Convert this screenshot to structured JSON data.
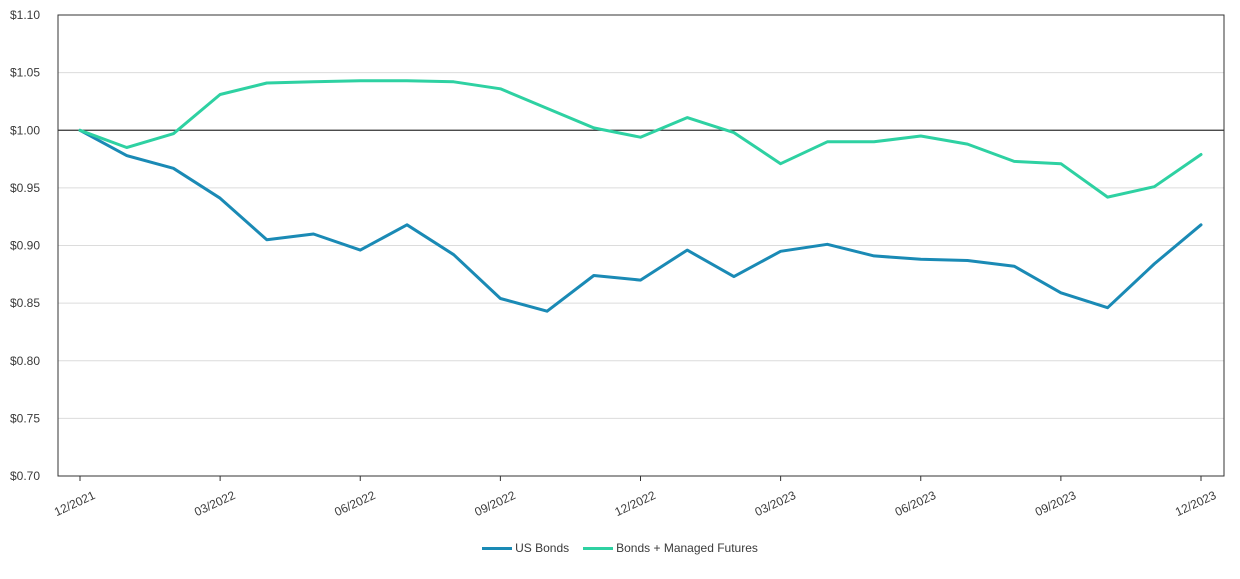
{
  "chart_data": {
    "type": "line",
    "title": "",
    "xlabel": "",
    "ylabel": "",
    "ylim": [
      0.7,
      1.1
    ],
    "y_ticks": [
      "$0.70",
      "$0.75",
      "$0.80",
      "$0.85",
      "$0.90",
      "$0.95",
      "$1.00",
      "$1.05",
      "$1.10"
    ],
    "y_tick_values": [
      0.7,
      0.75,
      0.8,
      0.85,
      0.9,
      0.95,
      1.0,
      1.05,
      1.1
    ],
    "x": [
      "12/2021",
      "01/2022",
      "02/2022",
      "03/2022",
      "04/2022",
      "05/2022",
      "06/2022",
      "07/2022",
      "08/2022",
      "09/2022",
      "10/2022",
      "11/2022",
      "12/2022",
      "01/2023",
      "02/2023",
      "03/2023",
      "04/2023",
      "05/2023",
      "06/2023",
      "07/2023",
      "08/2023",
      "09/2023",
      "10/2023",
      "11/2023",
      "12/2023"
    ],
    "x_tick_labels": [
      "12/2021",
      "03/2022",
      "06/2022",
      "09/2022",
      "12/2022",
      "03/2023",
      "06/2023",
      "09/2023",
      "12/2023"
    ],
    "x_tick_indices": [
      0,
      3,
      6,
      9,
      12,
      15,
      18,
      21,
      24
    ],
    "reference_line": 1.0,
    "grid": true,
    "legend_position": "bottom-center",
    "series": [
      {
        "name": "US Bonds",
        "color": "#1a8ab5",
        "values": [
          1.0,
          0.978,
          0.967,
          0.941,
          0.905,
          0.91,
          0.896,
          0.918,
          0.892,
          0.854,
          0.843,
          0.874,
          0.87,
          0.896,
          0.873,
          0.895,
          0.901,
          0.891,
          0.888,
          0.887,
          0.882,
          0.859,
          0.846,
          0.884,
          0.918
        ]
      },
      {
        "name": "Bonds + Managed Futures",
        "color": "#2ed1a2",
        "values": [
          1.0,
          0.985,
          0.997,
          1.031,
          1.041,
          1.042,
          1.043,
          1.043,
          1.042,
          1.036,
          1.019,
          1.002,
          0.994,
          1.011,
          0.998,
          0.971,
          0.99,
          0.99,
          0.995,
          0.988,
          0.973,
          0.971,
          0.942,
          0.951,
          0.979
        ]
      }
    ]
  }
}
